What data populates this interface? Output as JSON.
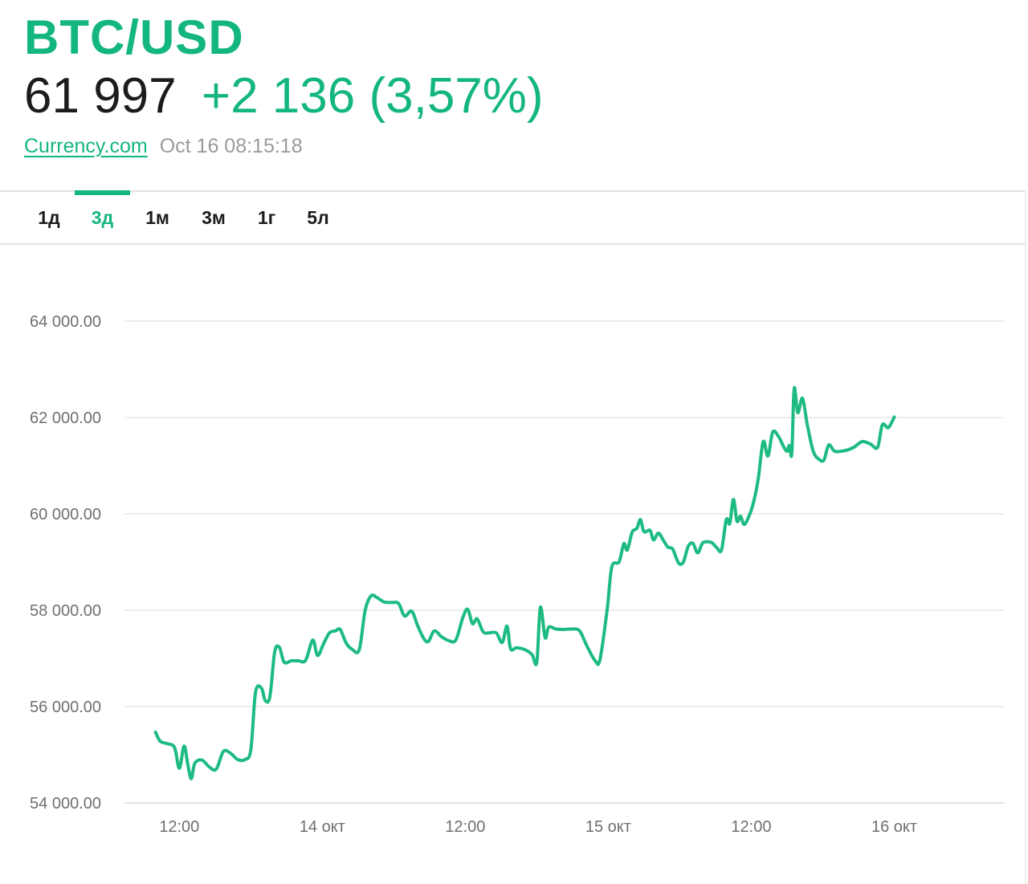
{
  "header": {
    "pair": "BTC/USD",
    "price": "61 997",
    "change": "+2 136 (3,57%)",
    "source": "Currency.com",
    "timestamp": "Oct 16 08:15:18"
  },
  "tabs": [
    {
      "label": "1д",
      "active": false
    },
    {
      "label": "3д",
      "active": true
    },
    {
      "label": "1м",
      "active": false
    },
    {
      "label": "3м",
      "active": false
    },
    {
      "label": "1г",
      "active": false
    },
    {
      "label": "5л",
      "active": false
    }
  ],
  "colors": {
    "accent": "#14b67f",
    "line": "#1dbb82",
    "grid": "#e6e6e6",
    "text": "#1c1c1c"
  },
  "chart_data": {
    "type": "line",
    "ylim": [
      54000,
      64000
    ],
    "y_ticks": [
      {
        "value": 54000,
        "label": "54 000.00"
      },
      {
        "value": 56000,
        "label": "56 000.00"
      },
      {
        "value": 58000,
        "label": "58 000.00"
      },
      {
        "value": 60000,
        "label": "60 000.00"
      },
      {
        "value": 62000,
        "label": "62 000.00"
      },
      {
        "value": 64000,
        "label": "64 000.00"
      }
    ],
    "x_ticks": [
      {
        "hour": 12,
        "label": "12:00"
      },
      {
        "hour": 24,
        "label": "14 окт"
      },
      {
        "hour": 36,
        "label": "12:00"
      },
      {
        "hour": 48,
        "label": "15 окт"
      },
      {
        "hour": 60,
        "label": "12:00"
      },
      {
        "hour": 72,
        "label": "16 окт"
      }
    ],
    "xlim": [
      7.4,
      81.2
    ],
    "series": [
      {
        "values": [
          [
            10.0,
            55470
          ],
          [
            10.4,
            55280
          ],
          [
            11.0,
            55230
          ],
          [
            11.6,
            55150
          ],
          [
            12.0,
            54720
          ],
          [
            12.4,
            55180
          ],
          [
            12.7,
            54820
          ],
          [
            13.0,
            54500
          ],
          [
            13.3,
            54820
          ],
          [
            13.9,
            54890
          ],
          [
            14.5,
            54750
          ],
          [
            15.1,
            54700
          ],
          [
            15.7,
            55070
          ],
          [
            16.3,
            55030
          ],
          [
            16.9,
            54900
          ],
          [
            17.5,
            54900
          ],
          [
            18.0,
            55100
          ],
          [
            18.4,
            56300
          ],
          [
            18.9,
            56380
          ],
          [
            19.2,
            56130
          ],
          [
            19.6,
            56200
          ],
          [
            20.0,
            57130
          ],
          [
            20.4,
            57230
          ],
          [
            20.8,
            56920
          ],
          [
            21.4,
            56950
          ],
          [
            22.0,
            56950
          ],
          [
            22.6,
            56960
          ],
          [
            23.2,
            57380
          ],
          [
            23.6,
            57060
          ],
          [
            24.1,
            57300
          ],
          [
            24.6,
            57530
          ],
          [
            25.1,
            57570
          ],
          [
            25.5,
            57600
          ],
          [
            26.0,
            57320
          ],
          [
            26.5,
            57190
          ],
          [
            27.1,
            57180
          ],
          [
            27.6,
            58000
          ],
          [
            28.1,
            58300
          ],
          [
            28.6,
            58260
          ],
          [
            29.2,
            58170
          ],
          [
            29.8,
            58160
          ],
          [
            30.4,
            58140
          ],
          [
            30.9,
            57880
          ],
          [
            31.5,
            57980
          ],
          [
            32.0,
            57680
          ],
          [
            32.5,
            57420
          ],
          [
            32.9,
            57350
          ],
          [
            33.4,
            57570
          ],
          [
            34.0,
            57450
          ],
          [
            34.6,
            57370
          ],
          [
            35.2,
            57380
          ],
          [
            35.8,
            57850
          ],
          [
            36.2,
            58020
          ],
          [
            36.6,
            57720
          ],
          [
            37.0,
            57820
          ],
          [
            37.5,
            57550
          ],
          [
            38.0,
            57530
          ],
          [
            38.6,
            57530
          ],
          [
            39.1,
            57330
          ],
          [
            39.5,
            57670
          ],
          [
            39.8,
            57200
          ],
          [
            40.3,
            57220
          ],
          [
            41.0,
            57180
          ],
          [
            41.6,
            57080
          ],
          [
            42.0,
            56920
          ],
          [
            42.3,
            58060
          ],
          [
            42.7,
            57430
          ],
          [
            43.0,
            57650
          ],
          [
            43.6,
            57610
          ],
          [
            44.2,
            57600
          ],
          [
            45.0,
            57610
          ],
          [
            45.6,
            57570
          ],
          [
            46.2,
            57260
          ],
          [
            46.9,
            56950
          ],
          [
            47.3,
            56970
          ],
          [
            47.9,
            58000
          ],
          [
            48.3,
            58900
          ],
          [
            48.9,
            59000
          ],
          [
            49.3,
            59380
          ],
          [
            49.6,
            59250
          ],
          [
            50.0,
            59620
          ],
          [
            50.4,
            59700
          ],
          [
            50.7,
            59880
          ],
          [
            51.0,
            59630
          ],
          [
            51.5,
            59660
          ],
          [
            51.8,
            59460
          ],
          [
            52.2,
            59600
          ],
          [
            52.6,
            59460
          ],
          [
            53.0,
            59310
          ],
          [
            53.4,
            59270
          ],
          [
            53.9,
            58980
          ],
          [
            54.3,
            59000
          ],
          [
            54.7,
            59320
          ],
          [
            55.1,
            59390
          ],
          [
            55.5,
            59190
          ],
          [
            55.9,
            59390
          ],
          [
            56.3,
            59420
          ],
          [
            56.7,
            59400
          ],
          [
            57.1,
            59300
          ],
          [
            57.5,
            59250
          ],
          [
            57.9,
            59880
          ],
          [
            58.2,
            59800
          ],
          [
            58.5,
            60300
          ],
          [
            58.8,
            59850
          ],
          [
            59.1,
            59950
          ],
          [
            59.4,
            59780
          ],
          [
            59.8,
            59950
          ],
          [
            60.2,
            60250
          ],
          [
            60.6,
            60750
          ],
          [
            61.0,
            61500
          ],
          [
            61.4,
            61200
          ],
          [
            61.8,
            61700
          ],
          [
            62.3,
            61600
          ],
          [
            62.7,
            61400
          ],
          [
            63.0,
            61300
          ],
          [
            63.2,
            61420
          ],
          [
            63.4,
            61250
          ],
          [
            63.6,
            62600
          ],
          [
            63.9,
            62100
          ],
          [
            64.3,
            62400
          ],
          [
            64.7,
            61850
          ],
          [
            65.2,
            61300
          ],
          [
            65.7,
            61130
          ],
          [
            66.1,
            61120
          ],
          [
            66.5,
            61430
          ],
          [
            67.0,
            61300
          ],
          [
            67.8,
            61310
          ],
          [
            68.6,
            61380
          ],
          [
            69.3,
            61500
          ],
          [
            70.0,
            61450
          ],
          [
            70.6,
            61380
          ],
          [
            71.0,
            61850
          ],
          [
            71.5,
            61790
          ],
          [
            72.0,
            62010
          ]
        ]
      }
    ]
  }
}
